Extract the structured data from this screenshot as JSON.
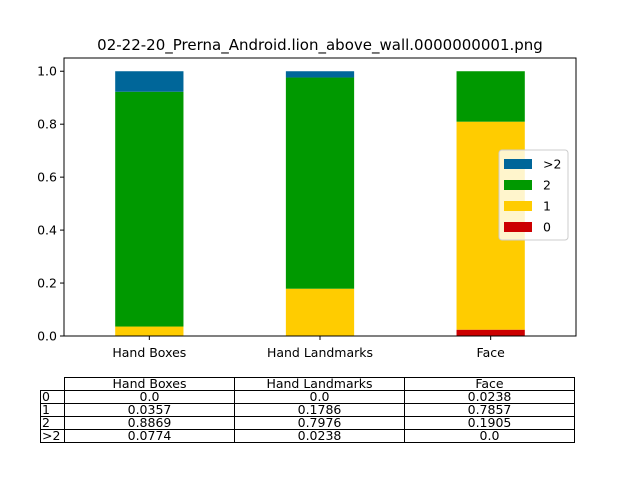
{
  "chart_data": {
    "type": "bar",
    "stacked": true,
    "title": "02-22-20_Prerna_Android.lion_above_wall.0000000001.png",
    "categories": [
      "Hand Boxes",
      "Hand Landmarks",
      "Face"
    ],
    "ylim": [
      0,
      1.05
    ],
    "yticks": [
      "0.0",
      "0.2",
      "0.4",
      "0.6",
      "0.8",
      "1.0"
    ],
    "series": [
      {
        "name": "0",
        "color": "#cc0000",
        "values": [
          0.0,
          0.0,
          0.0238
        ]
      },
      {
        "name": "1",
        "color": "#ffcc00",
        "values": [
          0.0357,
          0.1786,
          0.7857
        ]
      },
      {
        "name": "2",
        "color": "#009900",
        "values": [
          0.8869,
          0.7976,
          0.1905
        ]
      },
      {
        "name": ">2",
        "color": "#006699",
        "values": [
          0.0774,
          0.0238,
          0.0
        ]
      }
    ],
    "legend_order": [
      ">2",
      "2",
      "1",
      "0"
    ],
    "legend_position": "center-right",
    "grid": false
  },
  "table": {
    "columns": [
      "Hand Boxes",
      "Hand Landmarks",
      "Face"
    ],
    "rows": [
      {
        "label": "0",
        "cells": [
          "0.0",
          "0.0",
          "0.0238"
        ]
      },
      {
        "label": "1",
        "cells": [
          "0.0357",
          "0.1786",
          "0.7857"
        ]
      },
      {
        "label": "2",
        "cells": [
          "0.8869",
          "0.7976",
          "0.1905"
        ]
      },
      {
        "label": ">2",
        "cells": [
          "0.0774",
          "0.0238",
          "0.0"
        ]
      }
    ]
  }
}
